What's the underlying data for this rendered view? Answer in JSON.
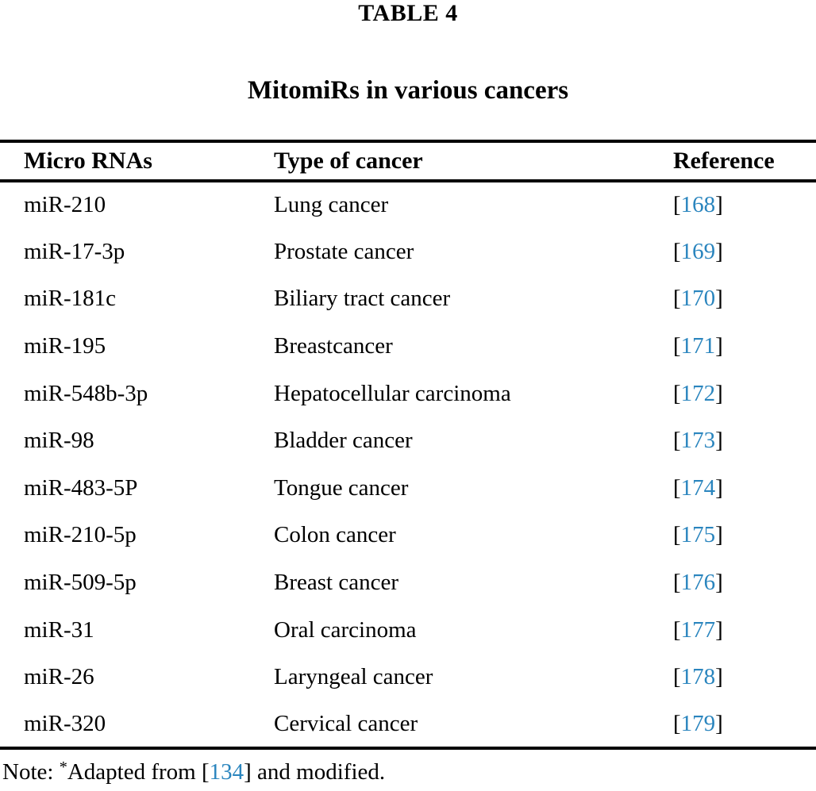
{
  "table": {
    "label": "TABLE 4",
    "title": "MitomiRs in various cancers",
    "columns": [
      "Micro RNAs",
      "Type of cancer",
      "Reference"
    ],
    "brackets": {
      "open": "[",
      "close": "]"
    },
    "rows": [
      {
        "mirna": "miR-210",
        "cancer": "Lung cancer",
        "ref": "168"
      },
      {
        "mirna": "miR-17-3p",
        "cancer": "Prostate cancer",
        "ref": "169"
      },
      {
        "mirna": "miR-181c",
        "cancer": "Biliary tract cancer",
        "ref": "170"
      },
      {
        "mirna": "miR-195",
        "cancer": "Breastcancer",
        "ref": "171"
      },
      {
        "mirna": "miR-548b-3p",
        "cancer": "Hepatocellular carcinoma",
        "ref": "172"
      },
      {
        "mirna": "miR-98",
        "cancer": "Bladder cancer",
        "ref": "173"
      },
      {
        "mirna": "miR-483-5P",
        "cancer": "Tongue cancer",
        "ref": "174"
      },
      {
        "mirna": "miR-210-5p",
        "cancer": "Colon cancer",
        "ref": "175"
      },
      {
        "mirna": "miR-509-5p",
        "cancer": "Breast cancer",
        "ref": "176"
      },
      {
        "mirna": "miR-31",
        "cancer": "Oral carcinoma",
        "ref": "177"
      },
      {
        "mirna": "miR-26",
        "cancer": "Laryngeal cancer",
        "ref": "178"
      },
      {
        "mirna": "miR-320",
        "cancer": "Cervical cancer",
        "ref": "179"
      }
    ],
    "note": {
      "prefix": "Note: ",
      "star": "*",
      "text_before_ref": "Adapted from ",
      "ref": "134",
      "text_after_ref": " and modified."
    }
  },
  "colors": {
    "link_blue": "#2A85BE",
    "text": "#000000",
    "background": "#FFFFFF",
    "rule": "#000000"
  }
}
